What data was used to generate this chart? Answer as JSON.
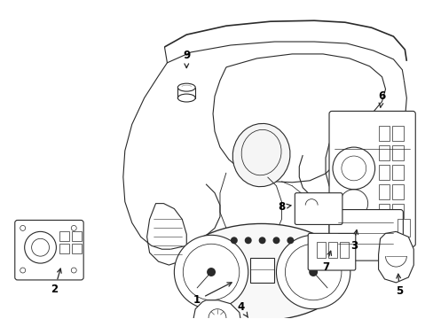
{
  "bg_color": "#ffffff",
  "line_color": "#2a2a2a",
  "lw": 0.8
}
